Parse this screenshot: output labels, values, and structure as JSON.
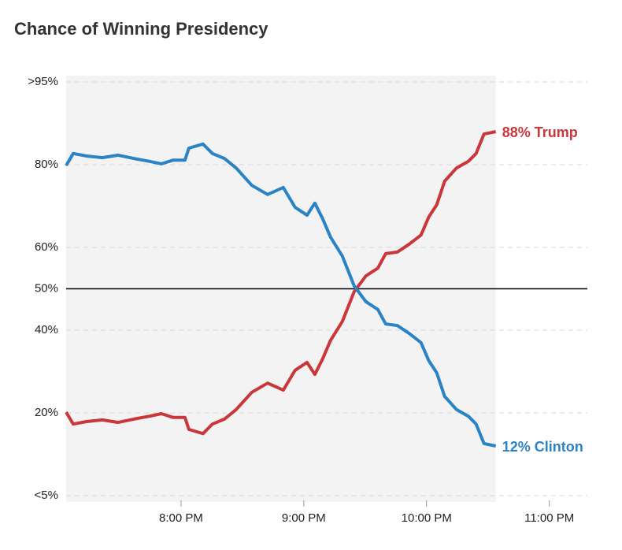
{
  "chart_data": {
    "type": "line",
    "title": "Chance of Winning Presidency",
    "x": [
      19.064,
      19.122,
      19.231,
      19.359,
      19.487,
      19.615,
      19.744,
      19.84,
      19.936,
      20.032,
      20.064,
      20.179,
      20.256,
      20.353,
      20.449,
      20.577,
      20.705,
      20.833,
      20.929,
      21.026,
      21.09,
      21.154,
      21.218,
      21.314,
      21.41,
      21.506,
      21.603,
      21.667,
      21.763,
      21.859,
      21.955,
      22.019,
      22.083,
      22.147,
      22.244,
      22.34,
      22.404,
      22.468,
      22.532,
      22.564
    ],
    "series": [
      {
        "name": "Trump",
        "color": "#c9373a",
        "label": "88% Trump",
        "values": [
          20.2,
          17.3,
          17.9,
          18.3,
          17.7,
          18.5,
          19.2,
          19.8,
          18.9,
          18.9,
          16,
          15,
          17.3,
          18.5,
          20.8,
          25,
          27.2,
          25.5,
          30.3,
          32.2,
          29.3,
          33.1,
          37.5,
          42.1,
          49.3,
          53.1,
          55,
          58.5,
          58.9,
          60.8,
          63,
          67.4,
          70.3,
          76,
          79.2,
          80.8,
          82.7,
          87.4,
          87.8,
          88
        ]
      },
      {
        "name": "Clinton",
        "color": "#2a83c5",
        "label": "12% Clinton",
        "values": [
          79.8,
          82.7,
          82.1,
          81.7,
          82.3,
          81.5,
          80.8,
          80.2,
          81.1,
          81.1,
          84,
          85,
          82.7,
          81.5,
          79.2,
          75,
          72.8,
          74.5,
          69.7,
          67.8,
          70.7,
          66.9,
          62.5,
          57.9,
          50.7,
          46.9,
          45,
          41.5,
          41.1,
          39.2,
          37,
          32.6,
          29.7,
          24,
          20.8,
          19.2,
          17.3,
          12.6,
          12.2,
          12
        ]
      }
    ],
    "xlim": [
      19.064,
      23.31
    ],
    "xticks": [
      {
        "value": 20,
        "label": "8:00 PM"
      },
      {
        "value": 21,
        "label": "9:00 PM"
      },
      {
        "value": 22,
        "label": "10:00 PM"
      },
      {
        "value": 23,
        "label": "11:00 PM"
      }
    ],
    "ylim": [
      0,
      100
    ],
    "yticks": [
      {
        "value": 0,
        "label": "<5%"
      },
      {
        "value": 20,
        "label": "20%"
      },
      {
        "value": 40,
        "label": "40%"
      },
      {
        "value": 50,
        "label": "50%"
      },
      {
        "value": 60,
        "label": "60%"
      },
      {
        "value": 80,
        "label": "80%"
      },
      {
        "value": 100,
        "label": ">95%"
      }
    ],
    "reference_line": 50,
    "grid": true
  }
}
